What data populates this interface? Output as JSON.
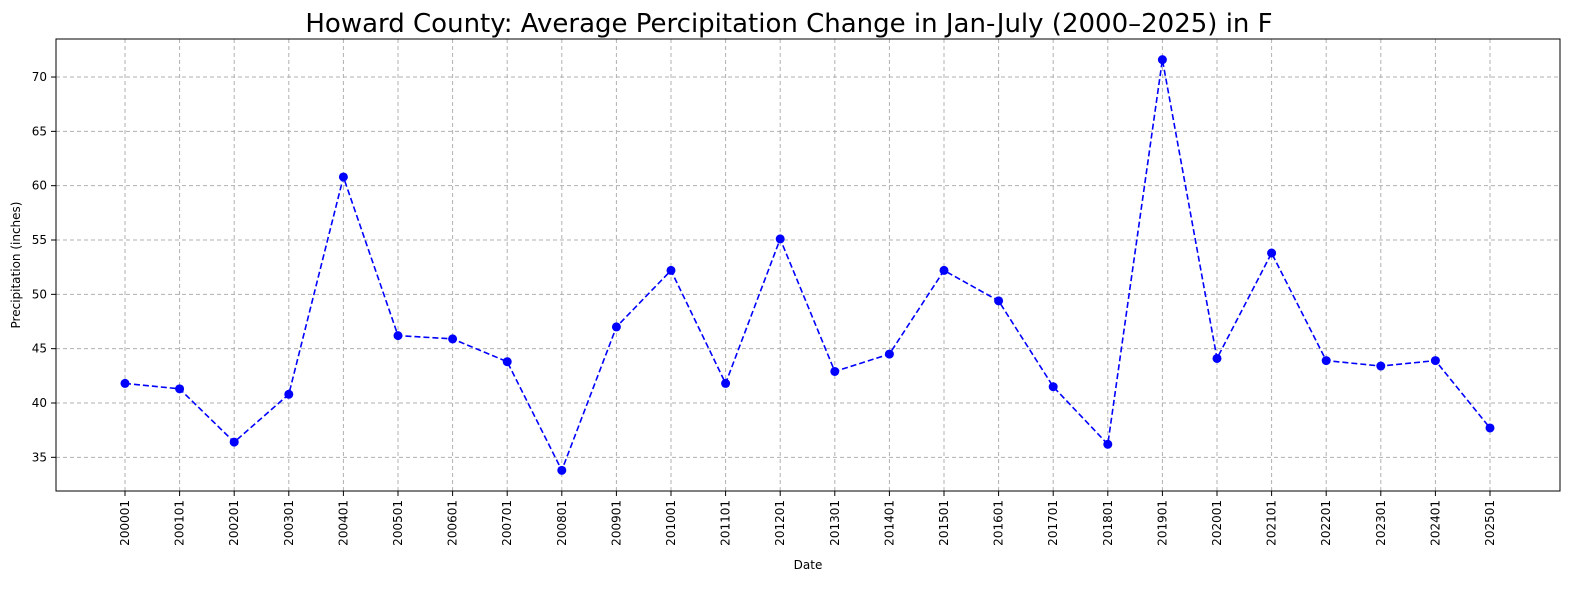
{
  "chart_data": {
    "type": "line",
    "title": "Howard County: Average Percipitation Change in Jan-July (2000–2025) in F",
    "xlabel": "Date",
    "ylabel": "Precipitation (inches)",
    "x": [
      "200001",
      "200101",
      "200201",
      "200301",
      "200401",
      "200501",
      "200601",
      "200701",
      "200801",
      "200901",
      "201001",
      "201101",
      "201201",
      "201301",
      "201401",
      "201501",
      "201601",
      "201701",
      "201801",
      "201901",
      "202001",
      "202101",
      "202201",
      "202301",
      "202401",
      "202501"
    ],
    "series": [
      {
        "values": [
          41.8,
          41.3,
          36.4,
          40.8,
          60.8,
          46.2,
          45.9,
          43.8,
          33.8,
          47.0,
          52.2,
          41.8,
          55.1,
          42.9,
          44.5,
          52.2,
          49.4,
          41.5,
          36.2,
          71.6,
          44.1,
          53.8,
          43.9,
          43.4,
          43.9,
          37.7
        ],
        "color": "#0000ff",
        "line_style": "dashed",
        "marker": "circle"
      }
    ],
    "y_ticks": [
      35,
      40,
      45,
      50,
      55,
      60,
      65,
      70
    ],
    "ylim": [
      31.9,
      73.5
    ],
    "grid": true,
    "legend": false
  }
}
